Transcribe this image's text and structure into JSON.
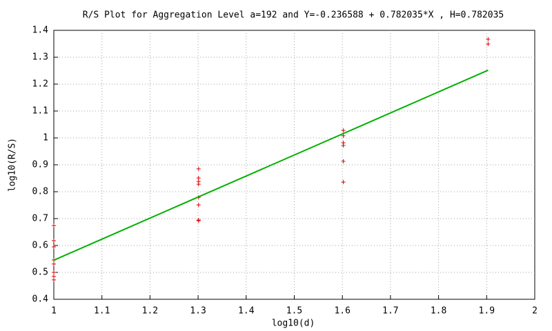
{
  "chart_data": {
    "type": "scatter",
    "title": "R/S Plot for Aggregation Level a=192 and Y=-0.236588 + 0.782035*X , H=0.782035",
    "x_label": "log10(d)",
    "y_label": "log10(R/S)",
    "xlim": [
      1,
      2
    ],
    "xticks": [
      1,
      1.1,
      1.2,
      1.3,
      1.4,
      1.5,
      1.6,
      1.7,
      1.8,
      1.9,
      2
    ],
    "ylim": [
      0.4,
      1.4
    ],
    "yticks": [
      0.4,
      0.5,
      0.6,
      0.7,
      0.8,
      0.9,
      1,
      1.1,
      1.2,
      1.3,
      1.4
    ],
    "grid": true,
    "series": [
      {
        "type": "scatter",
        "color": "#e00000",
        "x": [
          1,
          1,
          1,
          1,
          1,
          1,
          1,
          1,
          1.301,
          1.301,
          1.301,
          1.301,
          1.301,
          1.301,
          1.301,
          1.301,
          1.602,
          1.602,
          1.602,
          1.602,
          1.602,
          1.602,
          1.903,
          1.903
        ],
        "values": [
          0.674,
          0.618,
          0.595,
          0.546,
          0.531,
          0.5,
          0.485,
          0.472,
          0.885,
          0.851,
          0.838,
          0.828,
          0.779,
          0.751,
          0.695,
          0.692,
          1.028,
          1.008,
          0.982,
          0.972,
          0.913,
          0.836,
          1.367,
          1.349
        ]
      },
      {
        "type": "line",
        "color": "#00b000",
        "x": [
          1,
          1.903
        ],
        "values": [
          0.5454,
          1.2517
        ]
      }
    ]
  }
}
